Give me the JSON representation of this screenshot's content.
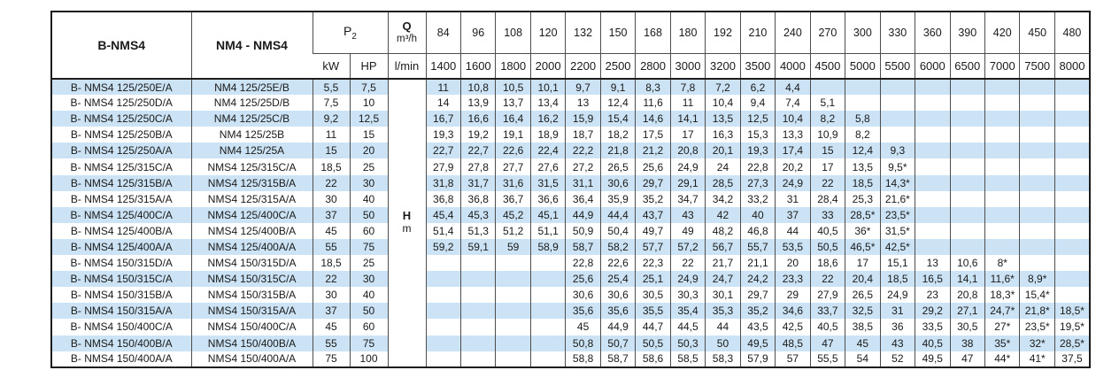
{
  "colors": {
    "stripe": "#cbe3f4",
    "border_dark": "#1c1c1c",
    "border_light": "#4d4d4d",
    "accent_text": "#1a1a1a"
  },
  "table": {
    "col1_header": "B-NMS4",
    "col2_header": "NM4 - NMS4",
    "p2_label": "P",
    "p2_sub": "2",
    "kw_label": "kW",
    "hp_label": "HP",
    "q_label": "Q",
    "q_unit": "m³/h",
    "lmin_label": "l/min",
    "h_label": "H",
    "h_unit": "m",
    "flow_m3h": [
      "84",
      "96",
      "108",
      "120",
      "132",
      "150",
      "168",
      "180",
      "192",
      "210",
      "240",
      "270",
      "300",
      "330",
      "360",
      "390",
      "420",
      "450",
      "480"
    ],
    "flow_lmin": [
      "1400",
      "1600",
      "1800",
      "2000",
      "2200",
      "2500",
      "2800",
      "3000",
      "3200",
      "3500",
      "4000",
      "4500",
      "5000",
      "5500",
      "6000",
      "6500",
      "7000",
      "7500",
      "8000"
    ],
    "rows": [
      {
        "b_model": "B- NMS4 125/250E/A",
        "model": "NM4 125/25E/B",
        "kw": "5,5",
        "hp": "7,5",
        "h": [
          "11",
          "10,8",
          "10,5",
          "10,1",
          "9,7",
          "9,1",
          "8,3",
          "7,8",
          "7,2",
          "6,2",
          "4,4",
          "",
          "",
          "",
          "",
          "",
          "",
          "",
          ""
        ]
      },
      {
        "b_model": "B- NMS4 125/250D/A",
        "model": "NM4 125/25D/B",
        "kw": "7,5",
        "hp": "10",
        "h": [
          "14",
          "13,9",
          "13,7",
          "13,4",
          "13",
          "12,4",
          "11,6",
          "11",
          "10,4",
          "9,4",
          "7,4",
          "5,1",
          "",
          "",
          "",
          "",
          "",
          "",
          ""
        ]
      },
      {
        "b_model": "B- NMS4 125/250C/A",
        "model": "NM4 125/25C/B",
        "kw": "9,2",
        "hp": "12,5",
        "h": [
          "16,7",
          "16,6",
          "16,4",
          "16,2",
          "15,9",
          "15,4",
          "14,6",
          "14,1",
          "13,5",
          "12,5",
          "10,4",
          "8,2",
          "5,8",
          "",
          "",
          "",
          "",
          "",
          ""
        ]
      },
      {
        "b_model": "B- NMS4 125/250B/A",
        "model": "NM4 125/25B",
        "kw": "11",
        "hp": "15",
        "h": [
          "19,3",
          "19,2",
          "19,1",
          "18,9",
          "18,7",
          "18,2",
          "17,5",
          "17",
          "16,3",
          "15,3",
          "13,3",
          "10,9",
          "8,2",
          "",
          "",
          "",
          "",
          "",
          ""
        ]
      },
      {
        "b_model": "B- NMS4 125/250A/A",
        "model": "NM4 125/25A",
        "kw": "15",
        "hp": "20",
        "h": [
          "22,7",
          "22,7",
          "22,6",
          "22,4",
          "22,2",
          "21,8",
          "21,2",
          "20,8",
          "20,1",
          "19,3",
          "17,4",
          "15",
          "12,4",
          "9,3",
          "",
          "",
          "",
          "",
          ""
        ]
      },
      {
        "b_model": "B- NMS4 125/315C/A",
        "model": "NMS4 125/315C/A",
        "kw": "18,5",
        "hp": "25",
        "h": [
          "27,9",
          "27,8",
          "27,7",
          "27,6",
          "27,2",
          "26,5",
          "25,6",
          "24,9",
          "24",
          "22,8",
          "20,2",
          "17",
          "13,5",
          "9,5*",
          "",
          "",
          "",
          "",
          ""
        ]
      },
      {
        "b_model": "B- NMS4 125/315B/A",
        "model": "NMS4 125/315B/A",
        "kw": "22",
        "hp": "30",
        "h": [
          "31,8",
          "31,7",
          "31,6",
          "31,5",
          "31,1",
          "30,6",
          "29,7",
          "29,1",
          "28,5",
          "27,3",
          "24,9",
          "22",
          "18,5",
          "14,3*",
          "",
          "",
          "",
          "",
          ""
        ]
      },
      {
        "b_model": "B- NMS4 125/315A/A",
        "model": "NMS4 125/315A/A",
        "kw": "30",
        "hp": "40",
        "h": [
          "36,8",
          "36,8",
          "36,7",
          "36,6",
          "36,4",
          "35,9",
          "35,2",
          "34,7",
          "34,2",
          "33,2",
          "31",
          "28,4",
          "25,3",
          "21,6*",
          "",
          "",
          "",
          "",
          ""
        ]
      },
      {
        "b_model": "B- NMS4 125/400C/A",
        "model": "NMS4 125/400C/A",
        "kw": "37",
        "hp": "50",
        "h": [
          "45,4",
          "45,3",
          "45,2",
          "45,1",
          "44,9",
          "44,4",
          "43,7",
          "43",
          "42",
          "40",
          "37",
          "33",
          "28,5*",
          "23,5*",
          "",
          "",
          "",
          "",
          ""
        ]
      },
      {
        "b_model": "B- NMS4 125/400B/A",
        "model": "NMS4 125/400B/A",
        "kw": "45",
        "hp": "60",
        "h": [
          "51,4",
          "51,3",
          "51,2",
          "51,1",
          "50,9",
          "50,4",
          "49,7",
          "49",
          "48,2",
          "46,8",
          "44",
          "40,5",
          "36*",
          "31,5*",
          "",
          "",
          "",
          "",
          ""
        ]
      },
      {
        "b_model": "B- NMS4 125/400A/A",
        "model": "NMS4 125/400A/A",
        "kw": "55",
        "hp": "75",
        "h": [
          "59,2",
          "59,1",
          "59",
          "58,9",
          "58,7",
          "58,2",
          "57,7",
          "57,2",
          "56,7",
          "55,7",
          "53,5",
          "50,5",
          "46,5*",
          "42,5*",
          "",
          "",
          "",
          "",
          ""
        ]
      },
      {
        "b_model": "B- NMS4 150/315D/A",
        "model": "NMS4 150/315D/A",
        "kw": "18,5",
        "hp": "25",
        "h": [
          "",
          "",
          "",
          "",
          "22,8",
          "22,6",
          "22,3",
          "22",
          "21,7",
          "21,1",
          "20",
          "18,6",
          "17",
          "15,1",
          "13",
          "10,6",
          "8*",
          "",
          ""
        ]
      },
      {
        "b_model": "B- NMS4 150/315C/A",
        "model": "NMS4 150/315C/A",
        "kw": "22",
        "hp": "30",
        "h": [
          "",
          "",
          "",
          "",
          "25,6",
          "25,4",
          "25,1",
          "24,9",
          "24,7",
          "24,2",
          "23,3",
          "22",
          "20,4",
          "18,5",
          "16,5",
          "14,1",
          "11,6*",
          "8,9*",
          ""
        ]
      },
      {
        "b_model": "B- NMS4 150/315B/A",
        "model": "NMS4 150/315B/A",
        "kw": "30",
        "hp": "40",
        "h": [
          "",
          "",
          "",
          "",
          "30,6",
          "30,6",
          "30,5",
          "30,3",
          "30,1",
          "29,7",
          "29",
          "27,9",
          "26,5",
          "24,9",
          "23",
          "20,8",
          "18,3*",
          "15,4*",
          ""
        ]
      },
      {
        "b_model": "B- NMS4 150/315A/A",
        "model": "NMS4 150/315A/A",
        "kw": "37",
        "hp": "50",
        "h": [
          "",
          "",
          "",
          "",
          "35,6",
          "35,6",
          "35,5",
          "35,4",
          "35,3",
          "35,2",
          "34,6",
          "33,7",
          "32,5",
          "31",
          "29,2",
          "27,1",
          "24,7*",
          "21,8*",
          "18,5*"
        ]
      },
      {
        "b_model": "B- NMS4 150/400C/A",
        "model": "NMS4 150/400C/A",
        "kw": "45",
        "hp": "60",
        "h": [
          "",
          "",
          "",
          "",
          "45",
          "44,9",
          "44,7",
          "44,5",
          "44",
          "43,5",
          "42,5",
          "40,5",
          "38,5",
          "36",
          "33,5",
          "30,5",
          "27*",
          "23,5*",
          "19,5*"
        ]
      },
      {
        "b_model": "B- NMS4 150/400B/A",
        "model": "NMS4 150/400B/A",
        "kw": "55",
        "hp": "75",
        "h": [
          "",
          "",
          "",
          "",
          "50,8",
          "50,7",
          "50,5",
          "50,3",
          "50",
          "49,5",
          "48,5",
          "47",
          "45",
          "43",
          "40,5",
          "38",
          "35*",
          "32*",
          "28,5*"
        ]
      },
      {
        "b_model": "B- NMS4 150/400A/A",
        "model": "NMS4 150/400A/A",
        "kw": "75",
        "hp": "100",
        "h": [
          "",
          "",
          "",
          "",
          "58,8",
          "58,7",
          "58,6",
          "58,5",
          "58,3",
          "57,9",
          "57",
          "55,5",
          "54",
          "52",
          "49,5",
          "47",
          "44*",
          "41*",
          "37,5"
        ]
      }
    ]
  }
}
